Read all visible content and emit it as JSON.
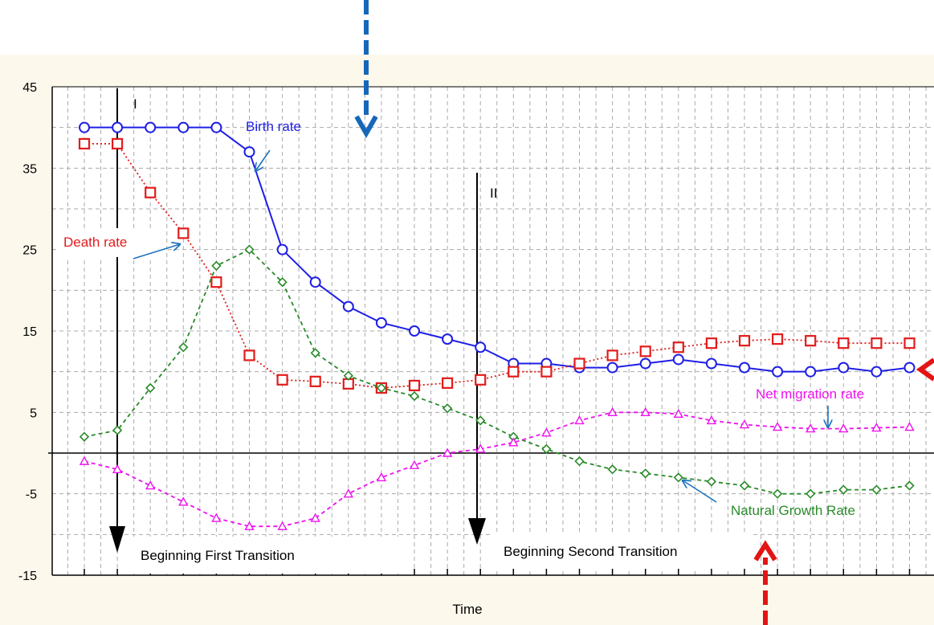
{
  "colors": {
    "page_bg": "#ffffff",
    "chart_bg": "#fdf8ec",
    "plot_bg": "#ffffff",
    "grid": "#aaaaaa",
    "axis": "#000000",
    "birth": "#1f1fe6",
    "death": "#e31b1b",
    "natural": "#2a8a2a",
    "migration": "#ee11ee",
    "annotation_arrow": "#1e73be",
    "overlay_blue": "#1767b8",
    "overlay_red": "#e31414"
  },
  "chart_data": {
    "type": "line",
    "xlabel": "Time",
    "ylabel": "",
    "ylim": [
      -15,
      45
    ],
    "yticks": [
      45,
      35,
      25,
      15,
      5,
      -5,
      -15
    ],
    "grid": true,
    "legend": "none",
    "x": [
      1,
      2,
      3,
      4,
      5,
      6,
      7,
      8,
      9,
      10,
      11,
      12,
      13,
      14,
      15,
      16,
      17,
      18,
      19,
      20,
      21,
      22,
      23,
      24,
      25,
      26
    ],
    "series": [
      {
        "name": "Birth rate",
        "color": "#1f1fe6",
        "marker": "circle",
        "line": "solid",
        "values": [
          40,
          40,
          40,
          40,
          40,
          37,
          25,
          21,
          18,
          16,
          15,
          14,
          13,
          11,
          11,
          10.5,
          10.5,
          11,
          11.5,
          11,
          10.5,
          10,
          10,
          10.5,
          10,
          10.5
        ]
      },
      {
        "name": "Death rate",
        "color": "#e31b1b",
        "marker": "square",
        "line": "dotted",
        "values": [
          38,
          38,
          32,
          27,
          21,
          12,
          9,
          8.8,
          8.5,
          8,
          8.3,
          8.6,
          9,
          10,
          10,
          11,
          12,
          12.5,
          13,
          13.5,
          13.8,
          14,
          13.8,
          13.5,
          13.5,
          13.5
        ]
      },
      {
        "name": "Natural Growth Rate",
        "color": "#2a8a2a",
        "marker": "diamond",
        "line": "dashed",
        "values": [
          2,
          2.8,
          8,
          13,
          23,
          25,
          21,
          12.3,
          9.5,
          8,
          7,
          5.5,
          4,
          2,
          0.5,
          -1,
          -2,
          -2.5,
          -3,
          -3.5,
          -4,
          -5,
          -5,
          -4.5,
          -4.5,
          -4
        ]
      },
      {
        "name": "Net migration rate",
        "color": "#ee11ee",
        "marker": "triangle",
        "line": "dashed",
        "values": [
          -1,
          -2,
          -4,
          -6,
          -8,
          -9,
          -9,
          -8,
          -5,
          -3,
          -1.5,
          0,
          0.5,
          1.3,
          2.5,
          4,
          5,
          5,
          4.8,
          4,
          3.5,
          3.2,
          3,
          3,
          3.1,
          3.2
        ]
      }
    ],
    "annotations": {
      "phase_first": "I",
      "phase_second": "II",
      "birth_label": "Birth rate",
      "death_label": "Death rate",
      "migration_label": "Net migration rate",
      "natural_label": "Natural Growth Rate",
      "first_transition": "Beginning First Transition",
      "second_transition": "Beginning Second Transition"
    }
  }
}
